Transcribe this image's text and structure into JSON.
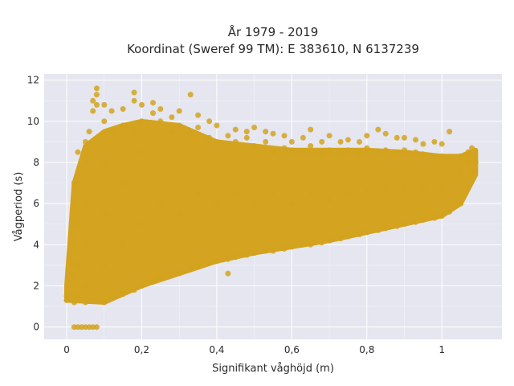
{
  "chart_data": {
    "type": "scatter",
    "title": "År 1979 - 2019",
    "subtitle": "Koordinat (Sweref 99 TM): E 383610, N 6137239",
    "xlabel": "Signifikant våghöjd (m)",
    "ylabel": "Vågperiod (s)",
    "xlim": [
      -0.06,
      1.16
    ],
    "ylim": [
      -0.6,
      12.3
    ],
    "x_ticks": [
      0,
      0.2,
      0.4,
      0.6,
      0.8,
      1
    ],
    "x_tick_labels": [
      "0",
      "0,2",
      "0,4",
      "0,6",
      "0,8",
      "1"
    ],
    "y_ticks": [
      0,
      2,
      4,
      6,
      8,
      10,
      12
    ],
    "y_tick_labels": [
      "0",
      "2",
      "4",
      "6",
      "8",
      "10",
      "12"
    ],
    "grid": true,
    "legend": "none",
    "marker_color": "#D4A31F",
    "plot_background": "#E5E6EF",
    "series": [
      {
        "points": [
          [
            0.0,
            1.5
          ],
          [
            0.0,
            1.3
          ],
          [
            0.02,
            0.0
          ],
          [
            0.03,
            0.0
          ],
          [
            0.04,
            0.0
          ],
          [
            0.05,
            0.0
          ],
          [
            0.06,
            0.0
          ],
          [
            0.07,
            0.0
          ],
          [
            0.08,
            0.0
          ],
          [
            0.02,
            1.2
          ],
          [
            0.02,
            2.5
          ],
          [
            0.02,
            4.0
          ],
          [
            0.02,
            6.0
          ],
          [
            0.02,
            7.0
          ],
          [
            0.03,
            1.5
          ],
          [
            0.03,
            3.0
          ],
          [
            0.03,
            5.0
          ],
          [
            0.03,
            7.5
          ],
          [
            0.03,
            8.5
          ],
          [
            0.05,
            1.2
          ],
          [
            0.05,
            2.0
          ],
          [
            0.05,
            4.0
          ],
          [
            0.05,
            6.0
          ],
          [
            0.05,
            8.0
          ],
          [
            0.05,
            9.0
          ],
          [
            0.06,
            9.5
          ],
          [
            0.07,
            10.5
          ],
          [
            0.07,
            11.0
          ],
          [
            0.08,
            11.6
          ],
          [
            0.08,
            11.3
          ],
          [
            0.08,
            10.8
          ],
          [
            0.1,
            1.2
          ],
          [
            0.1,
            3.0
          ],
          [
            0.1,
            5.5
          ],
          [
            0.1,
            8.0
          ],
          [
            0.1,
            10.0
          ],
          [
            0.1,
            10.8
          ],
          [
            0.12,
            1.5
          ],
          [
            0.12,
            9.5
          ],
          [
            0.12,
            10.5
          ],
          [
            0.15,
            1.6
          ],
          [
            0.15,
            4.0
          ],
          [
            0.15,
            7.0
          ],
          [
            0.15,
            9.8
          ],
          [
            0.15,
            10.6
          ],
          [
            0.18,
            1.8
          ],
          [
            0.18,
            9.5
          ],
          [
            0.18,
            11.0
          ],
          [
            0.18,
            11.4
          ],
          [
            0.2,
            2.0
          ],
          [
            0.2,
            5.0
          ],
          [
            0.2,
            8.5
          ],
          [
            0.2,
            10.0
          ],
          [
            0.2,
            10.8
          ],
          [
            0.23,
            2.2
          ],
          [
            0.23,
            10.4
          ],
          [
            0.23,
            10.9
          ],
          [
            0.25,
            2.4
          ],
          [
            0.25,
            6.0
          ],
          [
            0.25,
            10.0
          ],
          [
            0.25,
            10.6
          ],
          [
            0.28,
            2.5
          ],
          [
            0.28,
            9.5
          ],
          [
            0.28,
            10.2
          ],
          [
            0.3,
            2.6
          ],
          [
            0.3,
            5.5
          ],
          [
            0.3,
            9.8
          ],
          [
            0.3,
            10.5
          ],
          [
            0.33,
            2.8
          ],
          [
            0.33,
            9.4
          ],
          [
            0.33,
            11.3
          ],
          [
            0.35,
            3.0
          ],
          [
            0.35,
            6.5
          ],
          [
            0.35,
            9.7
          ],
          [
            0.35,
            10.3
          ],
          [
            0.38,
            3.1
          ],
          [
            0.38,
            9.2
          ],
          [
            0.38,
            10.0
          ],
          [
            0.4,
            3.2
          ],
          [
            0.4,
            6.0
          ],
          [
            0.4,
            9.0
          ],
          [
            0.4,
            9.8
          ],
          [
            0.43,
            2.6
          ],
          [
            0.43,
            3.3
          ],
          [
            0.43,
            9.3
          ],
          [
            0.45,
            3.4
          ],
          [
            0.45,
            6.5
          ],
          [
            0.45,
            9.0
          ],
          [
            0.45,
            9.6
          ],
          [
            0.48,
            3.5
          ],
          [
            0.48,
            9.2
          ],
          [
            0.48,
            9.5
          ],
          [
            0.5,
            3.6
          ],
          [
            0.5,
            6.0
          ],
          [
            0.5,
            8.8
          ],
          [
            0.5,
            9.7
          ],
          [
            0.53,
            3.7
          ],
          [
            0.53,
            9.0
          ],
          [
            0.53,
            9.5
          ],
          [
            0.55,
            3.7
          ],
          [
            0.55,
            6.5
          ],
          [
            0.55,
            8.5
          ],
          [
            0.55,
            9.4
          ],
          [
            0.58,
            3.8
          ],
          [
            0.58,
            8.7
          ],
          [
            0.58,
            9.3
          ],
          [
            0.6,
            3.9
          ],
          [
            0.6,
            6.0
          ],
          [
            0.6,
            8.6
          ],
          [
            0.6,
            9.0
          ],
          [
            0.63,
            4.0
          ],
          [
            0.63,
            8.5
          ],
          [
            0.63,
            9.2
          ],
          [
            0.65,
            4.0
          ],
          [
            0.65,
            6.5
          ],
          [
            0.65,
            8.8
          ],
          [
            0.65,
            9.6
          ],
          [
            0.68,
            4.1
          ],
          [
            0.68,
            8.4
          ],
          [
            0.68,
            9.0
          ],
          [
            0.7,
            4.2
          ],
          [
            0.7,
            6.2
          ],
          [
            0.7,
            8.6
          ],
          [
            0.7,
            9.3
          ],
          [
            0.73,
            4.3
          ],
          [
            0.73,
            8.5
          ],
          [
            0.73,
            9.0
          ],
          [
            0.75,
            4.4
          ],
          [
            0.75,
            6.5
          ],
          [
            0.75,
            8.6
          ],
          [
            0.75,
            9.1
          ],
          [
            0.78,
            4.5
          ],
          [
            0.78,
            8.4
          ],
          [
            0.78,
            9.0
          ],
          [
            0.8,
            4.6
          ],
          [
            0.8,
            6.6
          ],
          [
            0.8,
            8.7
          ],
          [
            0.8,
            9.3
          ],
          [
            0.83,
            4.7
          ],
          [
            0.83,
            8.5
          ],
          [
            0.83,
            9.6
          ],
          [
            0.85,
            4.8
          ],
          [
            0.85,
            6.8
          ],
          [
            0.85,
            8.6
          ],
          [
            0.85,
            9.4
          ],
          [
            0.88,
            4.9
          ],
          [
            0.88,
            8.5
          ],
          [
            0.88,
            9.2
          ],
          [
            0.9,
            5.0
          ],
          [
            0.9,
            6.8
          ],
          [
            0.9,
            8.6
          ],
          [
            0.9,
            9.2
          ],
          [
            0.93,
            5.1
          ],
          [
            0.93,
            8.5
          ],
          [
            0.93,
            9.1
          ],
          [
            0.95,
            5.2
          ],
          [
            0.95,
            6.8
          ],
          [
            0.95,
            8.4
          ],
          [
            0.95,
            8.9
          ],
          [
            0.98,
            5.3
          ],
          [
            0.98,
            8.3
          ],
          [
            0.98,
            9.0
          ],
          [
            1.0,
            5.4
          ],
          [
            1.0,
            6.8
          ],
          [
            1.0,
            8.3
          ],
          [
            1.0,
            8.9
          ],
          [
            1.02,
            5.6
          ],
          [
            1.02,
            8.2
          ],
          [
            1.02,
            9.5
          ],
          [
            1.05,
            6.0
          ],
          [
            1.05,
            7.5
          ],
          [
            1.05,
            8.3
          ],
          [
            1.07,
            6.8
          ],
          [
            1.07,
            8.0
          ],
          [
            1.07,
            8.5
          ],
          [
            1.08,
            7.5
          ],
          [
            1.08,
            8.7
          ],
          [
            1.09,
            8.0
          ]
        ]
      }
    ]
  }
}
